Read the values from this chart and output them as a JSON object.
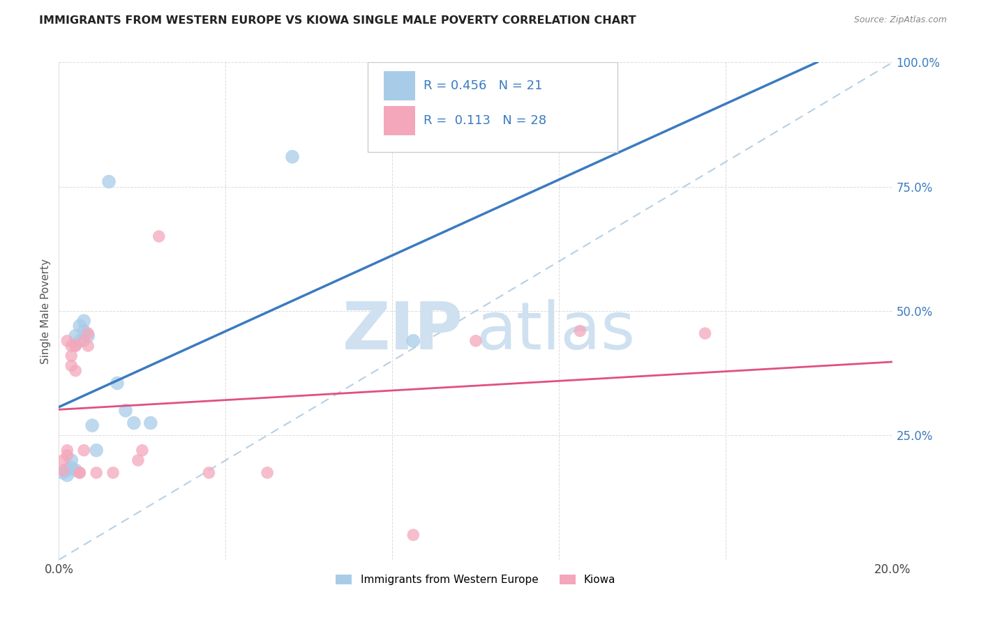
{
  "title": "IMMIGRANTS FROM WESTERN EUROPE VS KIOWA SINGLE MALE POVERTY CORRELATION CHART",
  "source": "Source: ZipAtlas.com",
  "ylabel": "Single Male Poverty",
  "legend_label1": "Immigrants from Western Europe",
  "legend_label2": "Kiowa",
  "R1": 0.456,
  "N1": 21,
  "R2": 0.113,
  "N2": 28,
  "blue_color": "#a8cce8",
  "pink_color": "#f4a7bb",
  "blue_line_color": "#3a7bbf",
  "pink_line_color": "#e05080",
  "blue_scatter": [
    [
      0.001,
      0.175
    ],
    [
      0.002,
      0.18
    ],
    [
      0.002,
      0.17
    ],
    [
      0.003,
      0.185
    ],
    [
      0.003,
      0.2
    ],
    [
      0.004,
      0.45
    ],
    [
      0.004,
      0.18
    ],
    [
      0.005,
      0.44
    ],
    [
      0.005,
      0.47
    ],
    [
      0.006,
      0.48
    ],
    [
      0.006,
      0.46
    ],
    [
      0.007,
      0.45
    ],
    [
      0.008,
      0.27
    ],
    [
      0.009,
      0.22
    ],
    [
      0.012,
      0.76
    ],
    [
      0.014,
      0.355
    ],
    [
      0.016,
      0.3
    ],
    [
      0.018,
      0.275
    ],
    [
      0.022,
      0.275
    ],
    [
      0.056,
      0.81
    ],
    [
      0.085,
      0.44
    ]
  ],
  "pink_scatter": [
    [
      0.001,
      0.2
    ],
    [
      0.001,
      0.18
    ],
    [
      0.002,
      0.22
    ],
    [
      0.002,
      0.21
    ],
    [
      0.002,
      0.44
    ],
    [
      0.003,
      0.43
    ],
    [
      0.003,
      0.41
    ],
    [
      0.003,
      0.39
    ],
    [
      0.004,
      0.43
    ],
    [
      0.004,
      0.43
    ],
    [
      0.004,
      0.38
    ],
    [
      0.005,
      0.175
    ],
    [
      0.005,
      0.175
    ],
    [
      0.006,
      0.44
    ],
    [
      0.006,
      0.22
    ],
    [
      0.007,
      0.43
    ],
    [
      0.007,
      0.455
    ],
    [
      0.009,
      0.175
    ],
    [
      0.013,
      0.175
    ],
    [
      0.019,
      0.2
    ],
    [
      0.02,
      0.22
    ],
    [
      0.024,
      0.65
    ],
    [
      0.036,
      0.175
    ],
    [
      0.05,
      0.175
    ],
    [
      0.085,
      0.05
    ],
    [
      0.1,
      0.44
    ],
    [
      0.125,
      0.46
    ],
    [
      0.155,
      0.455
    ]
  ],
  "xlim": [
    0.0,
    0.2
  ],
  "ylim": [
    0.0,
    1.0
  ],
  "xticks": [
    0.0,
    0.04,
    0.08,
    0.12,
    0.16,
    0.2
  ],
  "yticks": [
    0.0,
    0.25,
    0.5,
    0.75,
    1.0
  ],
  "background_color": "#ffffff",
  "grid_color": "#cccccc"
}
